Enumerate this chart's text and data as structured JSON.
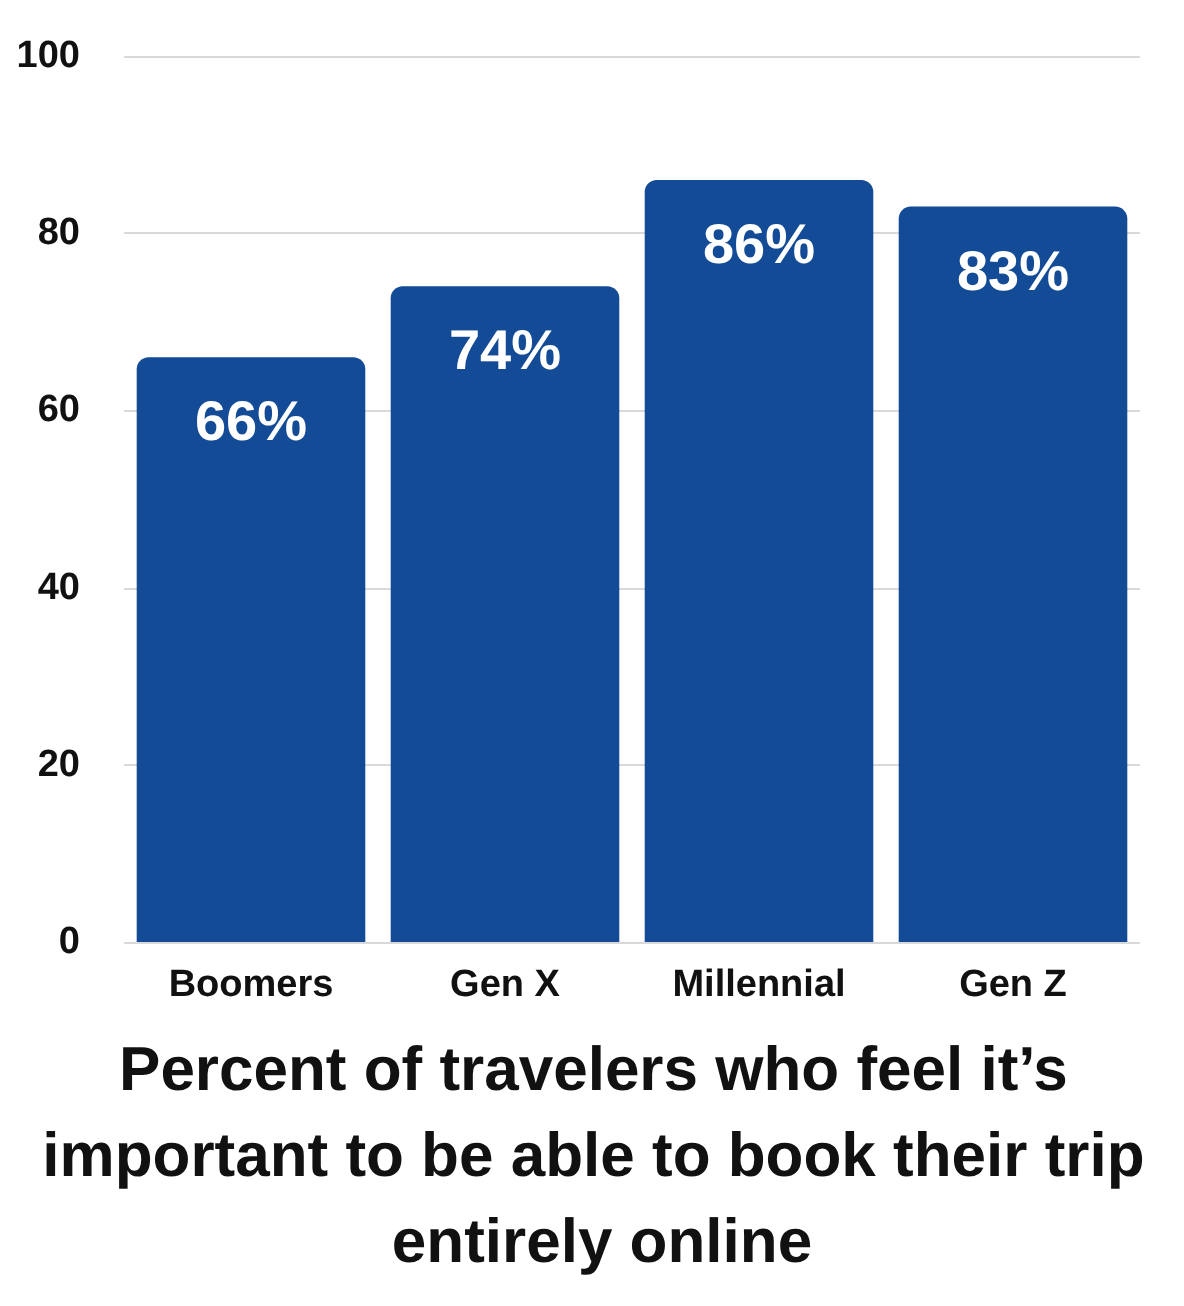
{
  "chart_data": {
    "type": "bar",
    "title": "Percent of travelers who feel it’s important to be able to book their trip entirely online",
    "categories": [
      "Boomers",
      "Gen X",
      "Millennial",
      "Gen Z"
    ],
    "values": [
      66,
      74,
      86,
      83
    ],
    "value_labels": [
      "66%",
      "74%",
      "86%",
      "83%"
    ],
    "color": "#134b96",
    "ylim": [
      0,
      100
    ],
    "yticks": [
      0,
      20,
      40,
      60,
      80,
      100
    ],
    "grid": "y"
  }
}
